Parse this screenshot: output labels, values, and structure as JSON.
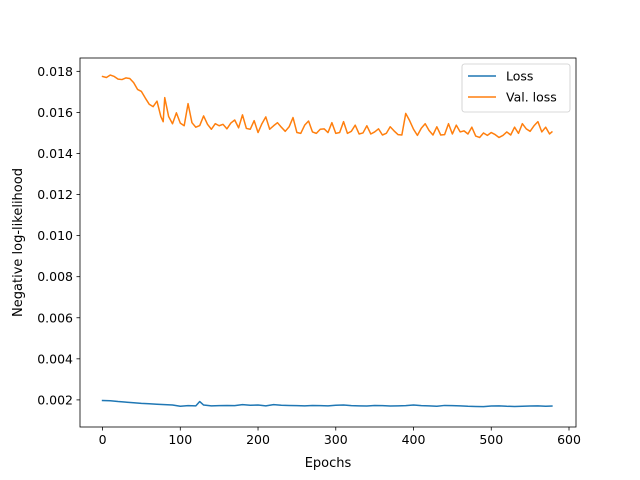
{
  "chart_data": {
    "type": "line",
    "title": "",
    "xlabel": "Epochs",
    "ylabel": "Negative log-likelihood",
    "xlim": [
      -29,
      609
    ],
    "ylim": [
      0.00068,
      0.01865
    ],
    "xticks": [
      0,
      100,
      200,
      300,
      400,
      500,
      600
    ],
    "yticks": [
      0.002,
      0.004,
      0.006,
      0.008,
      0.01,
      0.012,
      0.014,
      0.016,
      0.018
    ],
    "xtick_labels": [
      "0",
      "100",
      "200",
      "300",
      "400",
      "500",
      "600"
    ],
    "ytick_labels": [
      "0.002",
      "0.004",
      "0.006",
      "0.008",
      "0.010",
      "0.012",
      "0.014",
      "0.016",
      "0.018"
    ],
    "grid": false,
    "legend": "top-right",
    "series": [
      {
        "name": "Loss",
        "color": "#1f77b4",
        "x": [
          0,
          10,
          20,
          30,
          40,
          50,
          60,
          70,
          80,
          90,
          100,
          110,
          120,
          125,
          130,
          140,
          150,
          160,
          170,
          180,
          190,
          200,
          210,
          220,
          230,
          240,
          250,
          260,
          270,
          280,
          290,
          300,
          310,
          320,
          330,
          340,
          350,
          360,
          370,
          380,
          390,
          400,
          410,
          420,
          430,
          440,
          450,
          460,
          470,
          480,
          490,
          500,
          510,
          520,
          530,
          540,
          550,
          560,
          570,
          578
        ],
        "y": [
          0.00197,
          0.00196,
          0.00192,
          0.00189,
          0.00186,
          0.00183,
          0.00181,
          0.00179,
          0.00177,
          0.00175,
          0.00169,
          0.00172,
          0.00171,
          0.00192,
          0.00175,
          0.00171,
          0.00172,
          0.00173,
          0.00172,
          0.00177,
          0.00174,
          0.00175,
          0.00171,
          0.00177,
          0.00174,
          0.00173,
          0.00172,
          0.00171,
          0.00173,
          0.00172,
          0.00171,
          0.00174,
          0.00175,
          0.00172,
          0.00171,
          0.0017,
          0.00173,
          0.00172,
          0.0017,
          0.00171,
          0.00172,
          0.00175,
          0.00172,
          0.00171,
          0.00169,
          0.00173,
          0.00172,
          0.00171,
          0.00169,
          0.00168,
          0.00167,
          0.0017,
          0.00171,
          0.00169,
          0.00168,
          0.00169,
          0.0017,
          0.00171,
          0.00169,
          0.0017
        ]
      },
      {
        "name": "Val. loss",
        "color": "#ff7f0e",
        "x": [
          0,
          5,
          10,
          15,
          20,
          25,
          30,
          35,
          40,
          45,
          50,
          55,
          60,
          65,
          70,
          75,
          78,
          80,
          85,
          90,
          95,
          100,
          105,
          110,
          115,
          120,
          125,
          130,
          135,
          140,
          145,
          150,
          155,
          160,
          165,
          170,
          175,
          180,
          185,
          190,
          195,
          200,
          205,
          210,
          215,
          220,
          225,
          230,
          235,
          240,
          245,
          250,
          255,
          260,
          265,
          270,
          275,
          280,
          285,
          290,
          295,
          300,
          305,
          310,
          315,
          320,
          325,
          330,
          335,
          340,
          345,
          350,
          355,
          360,
          365,
          370,
          375,
          380,
          385,
          390,
          395,
          400,
          405,
          410,
          415,
          420,
          425,
          430,
          435,
          440,
          445,
          450,
          455,
          460,
          465,
          470,
          475,
          480,
          485,
          490,
          495,
          500,
          505,
          510,
          515,
          520,
          525,
          530,
          535,
          540,
          545,
          550,
          555,
          560,
          565,
          570,
          575,
          578
        ],
        "y": [
          0.01775,
          0.0177,
          0.01782,
          0.01775,
          0.01762,
          0.0176,
          0.01768,
          0.01765,
          0.01745,
          0.01712,
          0.01702,
          0.0167,
          0.0164,
          0.01628,
          0.01655,
          0.0158,
          0.01555,
          0.01672,
          0.0158,
          0.01545,
          0.01598,
          0.01548,
          0.01535,
          0.01643,
          0.0155,
          0.01528,
          0.01536,
          0.01583,
          0.01542,
          0.01518,
          0.01545,
          0.01535,
          0.01542,
          0.0152,
          0.01548,
          0.01563,
          0.01525,
          0.01588,
          0.01522,
          0.01518,
          0.0156,
          0.01502,
          0.01545,
          0.01578,
          0.01518,
          0.01535,
          0.0155,
          0.01528,
          0.01508,
          0.0153,
          0.01575,
          0.01502,
          0.01498,
          0.01538,
          0.01558,
          0.01505,
          0.01498,
          0.01518,
          0.0152,
          0.01502,
          0.0155,
          0.01498,
          0.01502,
          0.01555,
          0.01498,
          0.01508,
          0.01538,
          0.01495,
          0.015,
          0.01535,
          0.01495,
          0.01505,
          0.0152,
          0.0149,
          0.01498,
          0.0153,
          0.0151,
          0.01492,
          0.0149,
          0.01595,
          0.0156,
          0.01518,
          0.01488,
          0.01523,
          0.01545,
          0.01512,
          0.0149,
          0.0153,
          0.0149,
          0.01492,
          0.01545,
          0.01495,
          0.01538,
          0.01505,
          0.0151,
          0.01495,
          0.01528,
          0.01485,
          0.01478,
          0.015,
          0.01488,
          0.01502,
          0.01492,
          0.01478,
          0.01488,
          0.01505,
          0.0149,
          0.01528,
          0.01498,
          0.01545,
          0.0152,
          0.01508,
          0.01535,
          0.01555,
          0.01505,
          0.01528,
          0.01495,
          0.01505
        ]
      }
    ]
  }
}
